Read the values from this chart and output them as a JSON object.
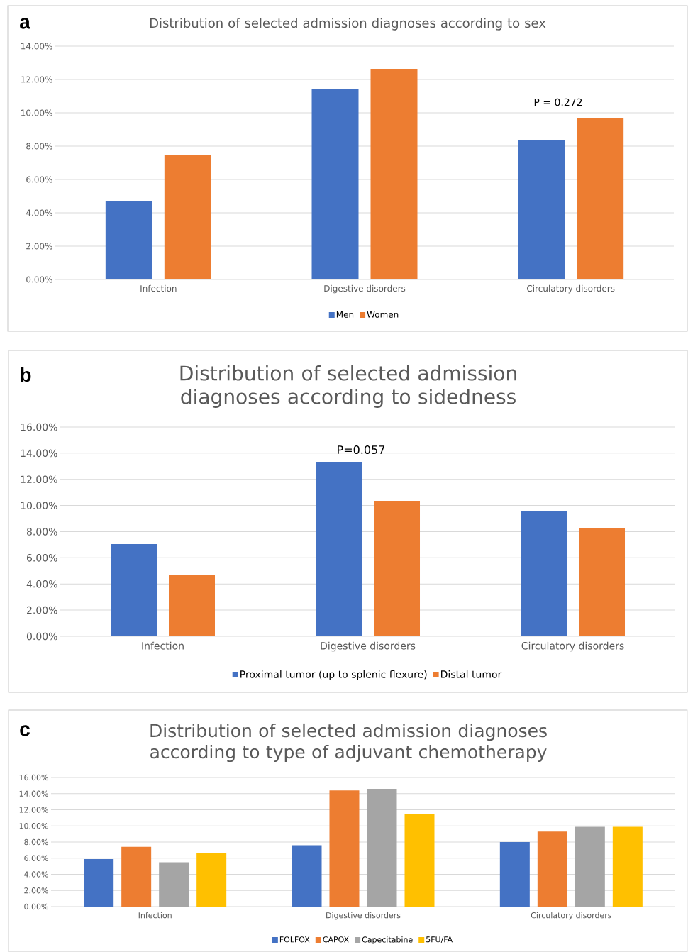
{
  "chart_data": [
    {
      "type": "bar",
      "title": "Distribution of selected admission diagnoses according to sex",
      "annotations": [
        "a",
        "P = 0.272"
      ],
      "categories": [
        "Infection",
        "Digestive disorders",
        "Circulatory disorders"
      ],
      "series": [
        {
          "name": "Men",
          "color": "#4472c4",
          "values": [
            4.72,
            11.45,
            8.34
          ]
        },
        {
          "name": "Women",
          "color": "#ed7d31",
          "values": [
            7.45,
            12.64,
            9.66
          ]
        }
      ],
      "ylim": [
        0,
        14
      ],
      "yticks": [
        {
          "value": 0,
          "label": "0.00%"
        },
        {
          "value": 2,
          "label": "2.00%"
        },
        {
          "value": 4,
          "label": "4.00%"
        },
        {
          "value": 6,
          "label": "6.00%"
        },
        {
          "value": 8,
          "label": "8.00%"
        },
        {
          "value": 10,
          "label": "10.00%"
        },
        {
          "value": 12,
          "label": "12.00%"
        },
        {
          "value": 14,
          "label": "14.00%"
        }
      ],
      "grid": "y",
      "legend": "bottom"
    },
    {
      "type": "bar",
      "title": "Distribution of selected admission diagnoses according to sidedness",
      "annotations": [
        "b",
        "P=0.057"
      ],
      "categories": [
        "Infection",
        "Digestive disorders",
        "Circulatory disorders"
      ],
      "series": [
        {
          "name": "Proximal tumor (up to splenic flexure)",
          "color": "#4472c4",
          "values": [
            7.05,
            13.34,
            9.54
          ]
        },
        {
          "name": "Distal tumor",
          "color": "#ed7d31",
          "values": [
            4.72,
            10.36,
            8.24
          ]
        }
      ],
      "ylim": [
        0,
        16
      ],
      "yticks": [
        {
          "value": 0,
          "label": "0.00%"
        },
        {
          "value": 2,
          "label": "2.00%"
        },
        {
          "value": 4,
          "label": "4.00%"
        },
        {
          "value": 6,
          "label": "6.00%"
        },
        {
          "value": 8,
          "label": "8.00%"
        },
        {
          "value": 10,
          "label": "10.00%"
        },
        {
          "value": 12,
          "label": "12.00%"
        },
        {
          "value": 14,
          "label": "14.00%"
        },
        {
          "value": 16,
          "label": "16.00%"
        }
      ],
      "grid": "y",
      "legend": "bottom"
    },
    {
      "type": "bar",
      "title": "Distribution of selected admission diagnoses according to type of adjuvant chemotherapy",
      "annotations": [
        "c"
      ],
      "categories": [
        "Infection",
        "Digestive disorders",
        "Circulatory disorders"
      ],
      "series": [
        {
          "name": "FOLFOX",
          "color": "#4472c4",
          "values": [
            5.9,
            7.6,
            8.0
          ]
        },
        {
          "name": "CAPOX",
          "color": "#ed7d31",
          "values": [
            7.4,
            14.4,
            9.3
          ]
        },
        {
          "name": "Capecitabine",
          "color": "#a5a5a5",
          "values": [
            5.5,
            14.6,
            9.9
          ]
        },
        {
          "name": "5FU/FA",
          "color": "#ffc000",
          "values": [
            6.6,
            11.5,
            9.9
          ]
        }
      ],
      "ylim": [
        0,
        16
      ],
      "yticks": [
        {
          "value": 0,
          "label": "0.00%"
        },
        {
          "value": 2,
          "label": "2.00%"
        },
        {
          "value": 4,
          "label": "4.00%"
        },
        {
          "value": 6,
          "label": "6.00%"
        },
        {
          "value": 8,
          "label": "8.00%"
        },
        {
          "value": 10,
          "label": "10.00%"
        },
        {
          "value": 12,
          "label": "12.00%"
        },
        {
          "value": 14,
          "label": "14.00%"
        },
        {
          "value": 16,
          "label": "16.00%"
        }
      ],
      "grid": "y",
      "legend": "bottom"
    }
  ]
}
